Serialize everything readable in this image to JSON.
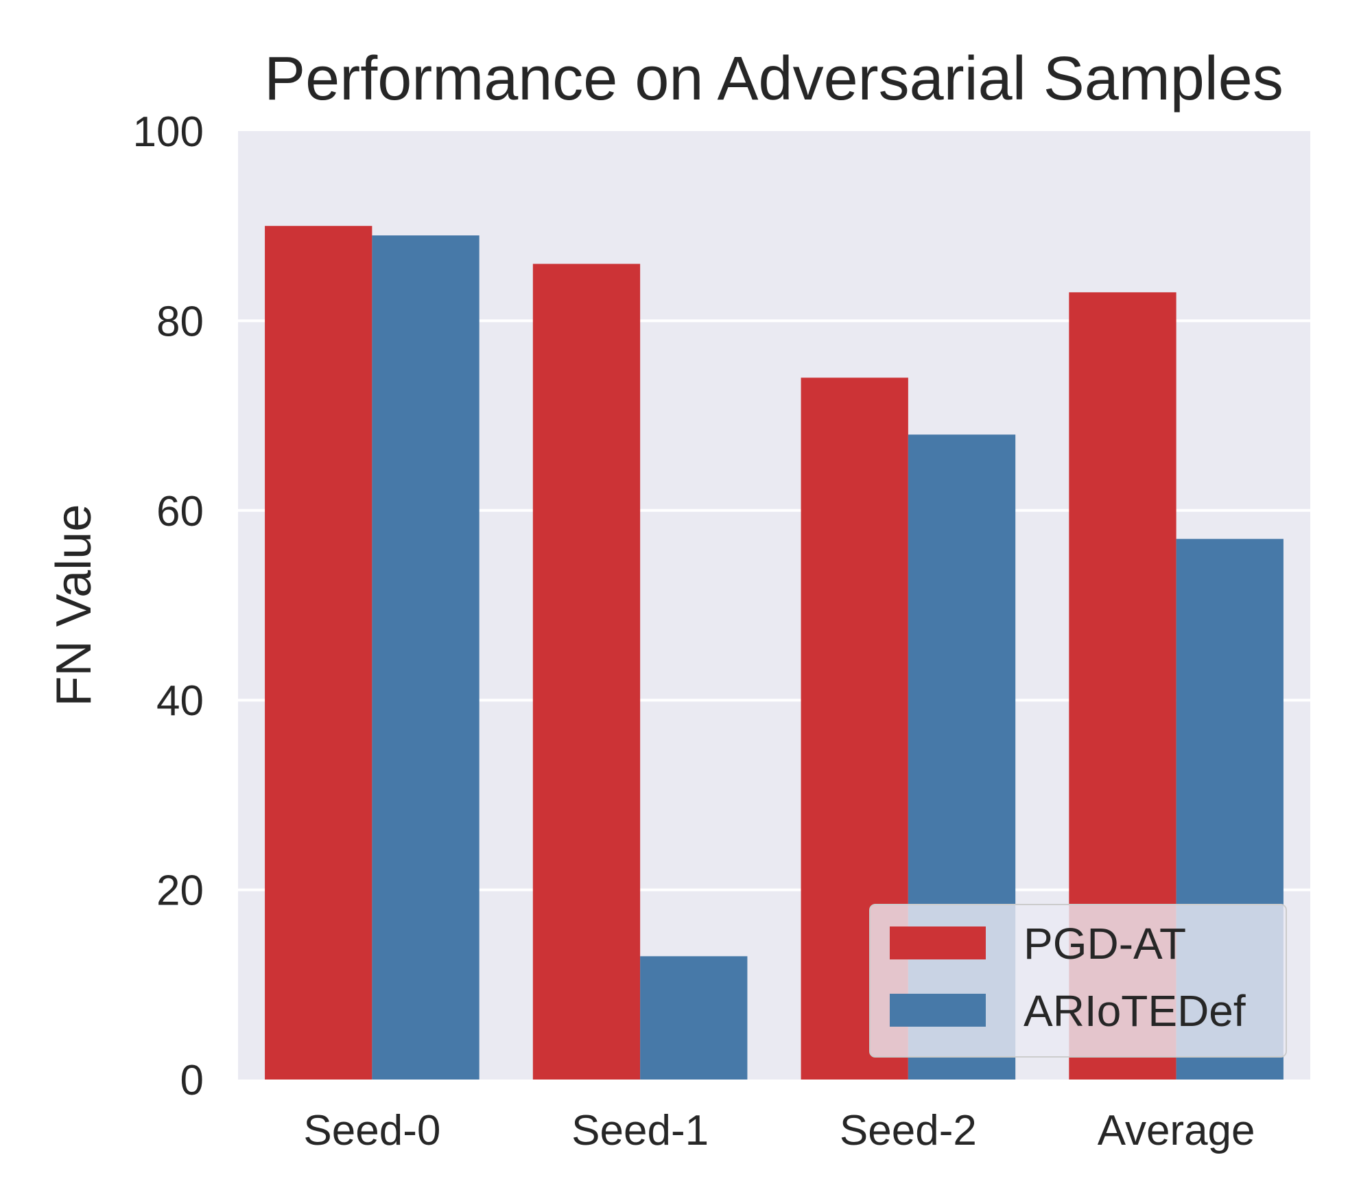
{
  "chart_data": {
    "type": "bar",
    "title": "Performance on Adversarial Samples",
    "xlabel": "",
    "ylabel": "FN Value",
    "categories": [
      "Seed-0",
      "Seed-1",
      "Seed-2",
      "Average"
    ],
    "series": [
      {
        "name": "PGD-AT",
        "color": "#cc3336",
        "values": [
          90,
          86,
          74,
          83
        ]
      },
      {
        "name": "ARIoTEDef",
        "color": "#4779a8",
        "values": [
          89,
          13,
          68,
          57
        ]
      }
    ],
    "ylim": [
      0,
      100
    ],
    "yticks": [
      0,
      20,
      40,
      60,
      80,
      100
    ],
    "grid": true,
    "legend_position": "lower right",
    "plot_background": "#eaeaf2"
  }
}
